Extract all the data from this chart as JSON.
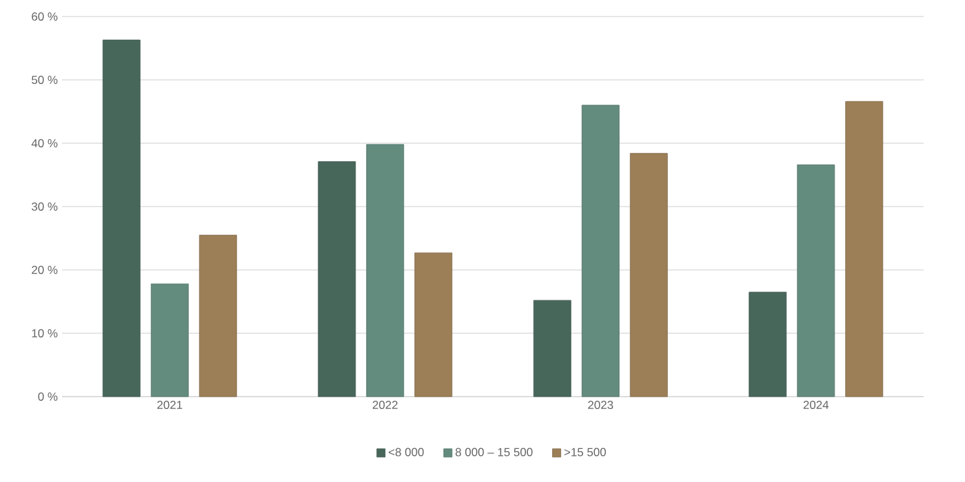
{
  "chart_data": {
    "type": "bar",
    "categories": [
      "2021",
      "2022",
      "2023",
      "2024"
    ],
    "series": [
      {
        "name": "<8 000",
        "color": "#48675b",
        "values": [
          56.3,
          37.1,
          15.2,
          16.5
        ]
      },
      {
        "name": "8 000 – 15 500",
        "color": "#638c7f",
        "values": [
          17.8,
          39.8,
          46.0,
          36.6
        ]
      },
      {
        "name": ">15 500",
        "color": "#9c7f57",
        "values": [
          25.5,
          22.7,
          38.4,
          46.6
        ]
      }
    ],
    "ylim": [
      0,
      60
    ],
    "yticks": [
      {
        "value": 0,
        "label": "0 %"
      },
      {
        "value": 10,
        "label": "10 %"
      },
      {
        "value": 20,
        "label": "20 %"
      },
      {
        "value": 30,
        "label": "30 %"
      },
      {
        "value": 40,
        "label": "40 %"
      },
      {
        "value": 50,
        "label": "50 %"
      },
      {
        "value": 60,
        "label": "60 %"
      }
    ],
    "grid": "y",
    "legend": "bottom"
  }
}
